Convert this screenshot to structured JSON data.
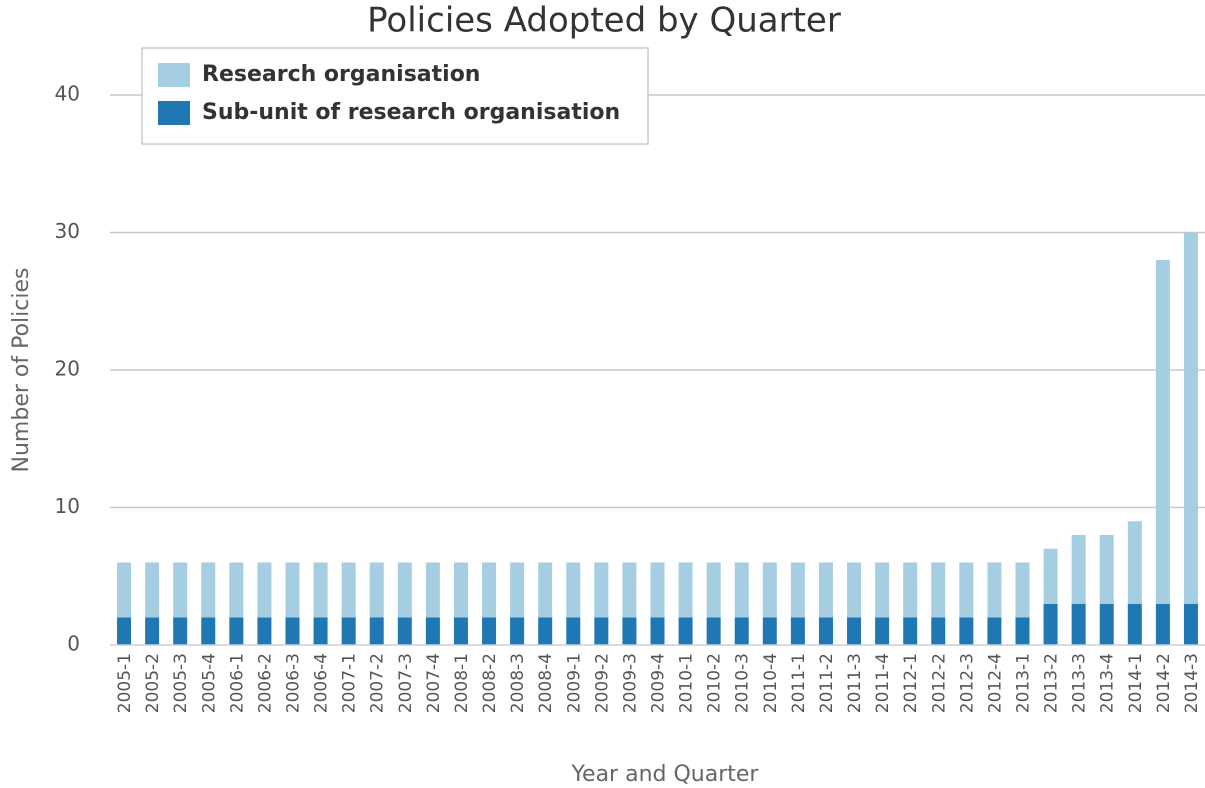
{
  "chart_data": {
    "type": "stacked_bar",
    "title": "Policies Adopted by Quarter",
    "x_label": "Year and Quarter",
    "y_label": "Number of Policies",
    "categories": [
      "2005-1",
      "2005-2",
      "2005-3",
      "2005-4",
      "2006-1",
      "2006-2",
      "2006-3",
      "2006-4",
      "2007-1",
      "2007-2",
      "2007-3",
      "2007-4",
      "2008-1",
      "2008-2",
      "2008-3",
      "2008-4",
      "2009-1",
      "2009-2",
      "2009-3",
      "2009-4",
      "2010-1",
      "2010-2",
      "2010-3",
      "2010-4",
      "2011-1",
      "2011-2",
      "2011-3",
      "2011-4",
      "2012-1",
      "2012-2",
      "2012-3",
      "2012-4",
      "2013-1",
      "2013-2",
      "2013-3",
      "2013-4",
      "2014-1",
      "2014-2",
      "2014-3"
    ],
    "series": [
      {
        "name": "Research organisation",
        "color": "#a6cee3",
        "values": [
          4,
          4,
          4,
          4,
          4,
          4,
          4,
          4,
          4,
          4,
          4,
          4,
          4,
          4,
          4,
          4,
          4,
          4,
          4,
          4,
          4,
          4,
          4,
          4,
          4,
          4,
          4,
          4,
          4,
          4,
          4,
          4,
          4,
          4,
          5,
          5,
          6,
          25,
          27
        ]
      },
      {
        "name": "Sub-unit of research organisation",
        "color": "#1f78b4",
        "values": [
          2,
          2,
          2,
          2,
          2,
          2,
          2,
          2,
          2,
          2,
          2,
          2,
          2,
          2,
          2,
          2,
          2,
          2,
          2,
          2,
          2,
          2,
          2,
          2,
          2,
          2,
          2,
          2,
          2,
          2,
          2,
          2,
          2,
          3,
          3,
          3,
          3,
          3,
          3
        ]
      }
    ],
    "ylim": [
      0,
      40
    ],
    "yticks": [
      0,
      10,
      20,
      30,
      40
    ],
    "grid": true,
    "legend": "upper left"
  }
}
